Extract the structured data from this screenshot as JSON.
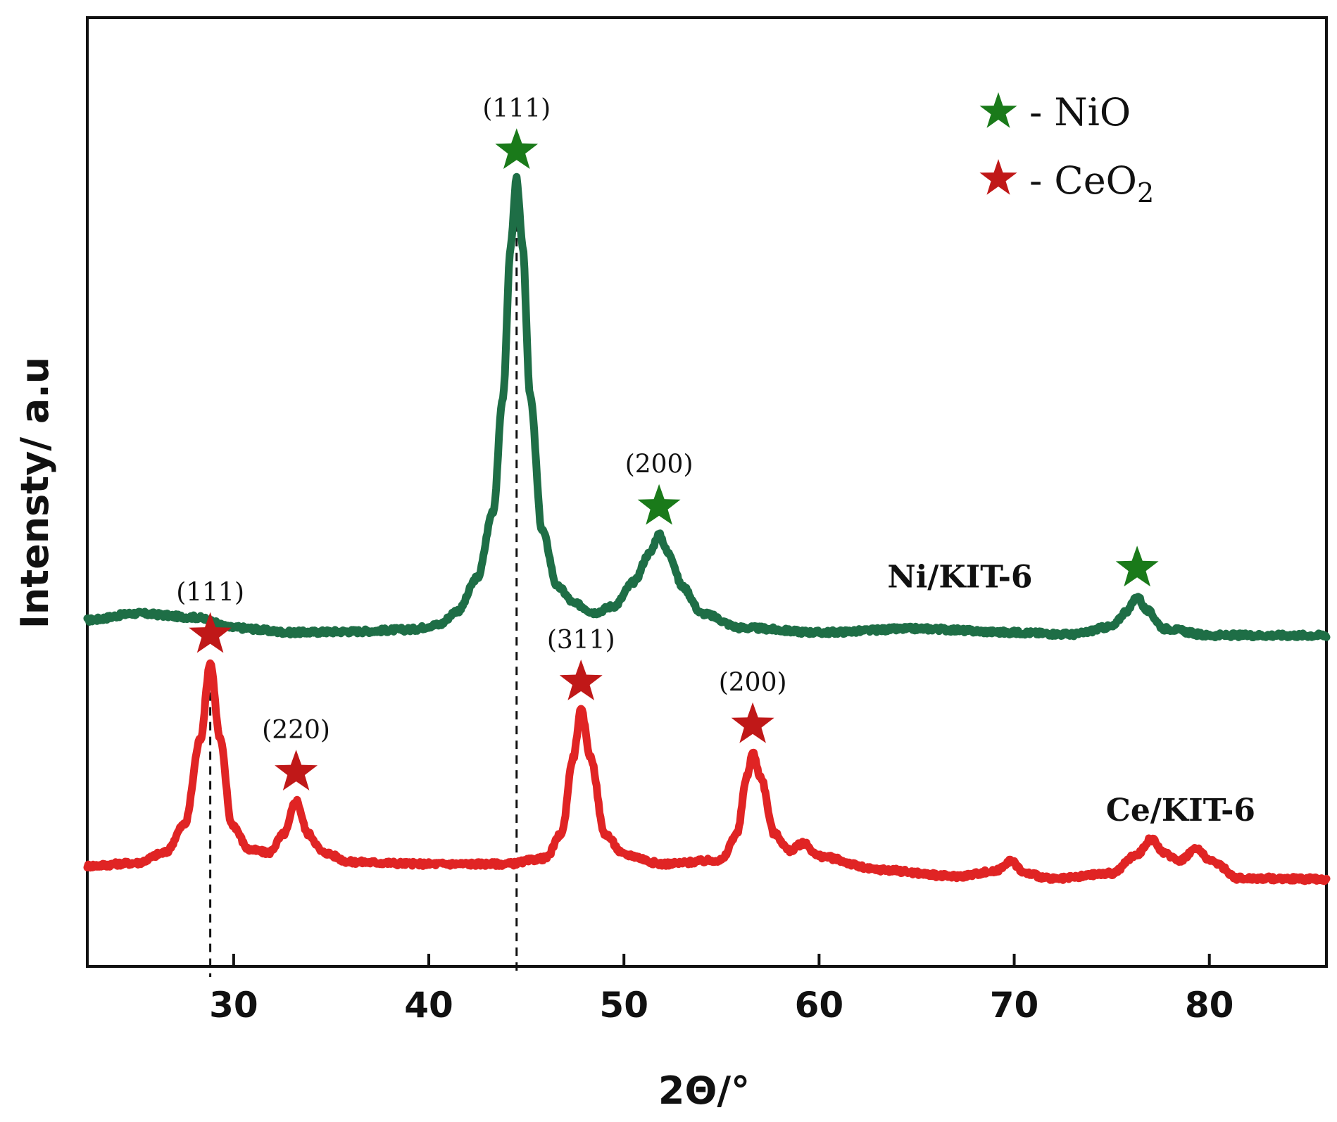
{
  "chart_data": {
    "type": "line",
    "title": "",
    "xlabel": "2Θ/°",
    "ylabel": "Intensty/ a.u",
    "xlim": [
      22.5,
      86
    ],
    "ylim": [
      0,
      100
    ],
    "xticks": [
      30,
      40,
      50,
      60,
      70,
      80
    ],
    "grid": false,
    "legend": {
      "position": "top-right",
      "entries": [
        {
          "marker": "star",
          "color": "#1a7a1a",
          "label": "- NiO"
        },
        {
          "marker": "star",
          "color": "#c01818",
          "label": "- CeO",
          "subscript": "2"
        }
      ]
    },
    "series": [
      {
        "name": "Ni/KIT-6",
        "color": "#1e6e46",
        "baseline": [
          [
            22.5,
            36.5
          ],
          [
            25,
            37.2
          ],
          [
            28,
            36.8
          ],
          [
            30,
            35.7
          ],
          [
            33,
            35.2
          ],
          [
            36,
            35.3
          ],
          [
            39,
            35.5
          ],
          [
            40.5,
            36
          ],
          [
            41.5,
            37.5
          ],
          [
            42.5,
            41
          ],
          [
            43.3,
            48
          ],
          [
            43.8,
            60
          ],
          [
            44.2,
            76
          ],
          [
            44.5,
            83
          ],
          [
            44.8,
            76
          ],
          [
            45.2,
            60
          ],
          [
            45.8,
            46
          ],
          [
            46.6,
            40
          ],
          [
            47.5,
            38.2
          ],
          [
            48.5,
            37.3
          ],
          [
            49.5,
            38
          ],
          [
            50.5,
            40.5
          ],
          [
            51.3,
            43.5
          ],
          [
            51.8,
            45.5
          ],
          [
            52.3,
            43.5
          ],
          [
            53,
            40
          ],
          [
            54,
            37.2
          ],
          [
            56,
            35.7
          ],
          [
            60,
            35.2
          ],
          [
            65,
            35.6
          ],
          [
            70,
            35.2
          ],
          [
            73,
            35
          ],
          [
            75,
            35.8
          ],
          [
            75.8,
            37.5
          ],
          [
            76.3,
            39
          ],
          [
            76.8,
            37.5
          ],
          [
            77.7,
            35.6
          ],
          [
            80,
            34.9
          ],
          [
            86,
            34.9
          ]
        ],
        "label": "Ni/KIT-6"
      },
      {
        "name": "Ce/KIT-6",
        "color": "#e02424",
        "baseline": [
          [
            22.5,
            10.6
          ],
          [
            25,
            10.9
          ],
          [
            26.5,
            12
          ],
          [
            27.5,
            15
          ],
          [
            28.3,
            24
          ],
          [
            28.8,
            32
          ],
          [
            29.3,
            24
          ],
          [
            29.9,
            15
          ],
          [
            30.8,
            12.3
          ],
          [
            31.8,
            12
          ],
          [
            32.6,
            14
          ],
          [
            33.2,
            17.5
          ],
          [
            33.8,
            14
          ],
          [
            34.6,
            12
          ],
          [
            36,
            11
          ],
          [
            40,
            10.8
          ],
          [
            44,
            10.8
          ],
          [
            46,
            11.4
          ],
          [
            46.8,
            14
          ],
          [
            47.4,
            22
          ],
          [
            47.8,
            27
          ],
          [
            48.3,
            22
          ],
          [
            49,
            14
          ],
          [
            50,
            11.8
          ],
          [
            52,
            10.8
          ],
          [
            55,
            11.2
          ],
          [
            55.8,
            14
          ],
          [
            56.3,
            20
          ],
          [
            56.6,
            22.5
          ],
          [
            57,
            20
          ],
          [
            57.7,
            14
          ],
          [
            58.5,
            12.2
          ],
          [
            59.2,
            13
          ],
          [
            60,
            11.6
          ],
          [
            63,
            10.2
          ],
          [
            67,
            9.5
          ],
          [
            69,
            10
          ],
          [
            69.8,
            11.1
          ],
          [
            70.6,
            9.8
          ],
          [
            72,
            9.2
          ],
          [
            75,
            9.8
          ],
          [
            76.3,
            11.8
          ],
          [
            77,
            13.4
          ],
          [
            77.8,
            11.8
          ],
          [
            78.5,
            11.2
          ],
          [
            79.3,
            12.4
          ],
          [
            80.2,
            11
          ],
          [
            81.5,
            9.3
          ],
          [
            86,
            9.2
          ]
        ],
        "label": "Ce/KIT-6"
      }
    ],
    "peaks": [
      {
        "phase": "NiO",
        "x": 44.5,
        "hkl": "(111)",
        "star_color": "#1a7a1a"
      },
      {
        "phase": "NiO",
        "x": 51.8,
        "hkl": "(200)",
        "star_color": "#1a7a1a"
      },
      {
        "phase": "NiO",
        "x": 76.3,
        "hkl": "",
        "star_color": "#1a7a1a"
      },
      {
        "phase": "CeO2",
        "x": 28.8,
        "hkl": "(111)",
        "star_color": "#c01818"
      },
      {
        "phase": "CeO2",
        "x": 33.2,
        "hkl": "(220)",
        "star_color": "#c01818"
      },
      {
        "phase": "CeO2",
        "x": 47.8,
        "hkl": "(311)",
        "star_color": "#c01818"
      },
      {
        "phase": "CeO2",
        "x": 56.6,
        "hkl": "(200)",
        "star_color": "#c01818"
      }
    ],
    "reference_lines": [
      28.8,
      44.5
    ]
  }
}
